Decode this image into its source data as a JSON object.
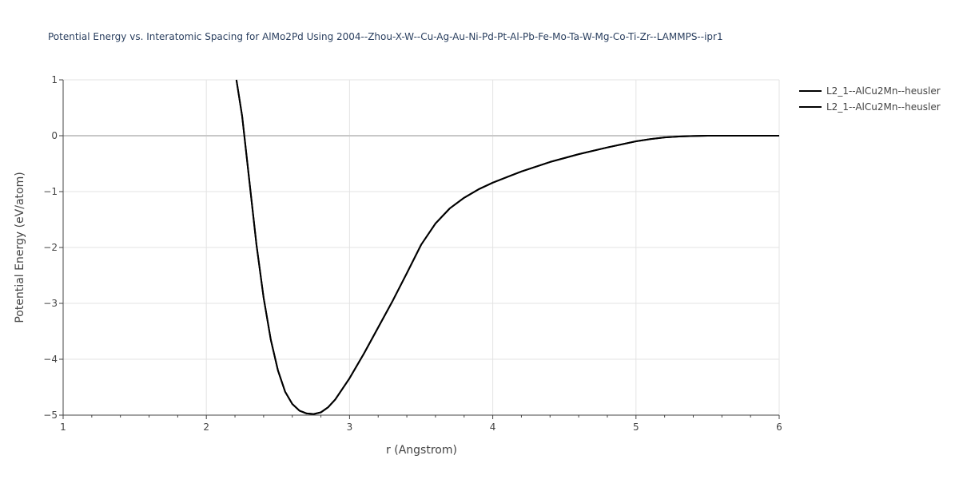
{
  "chart_data": {
    "type": "line",
    "title": "Potential Energy vs. Interatomic Spacing for AlMo2Pd Using 2004--Zhou-X-W--Cu-Ag-Au-Ni-Pd-Pt-Al-Pb-Fe-Mo-Ta-W-Mg-Co-Ti-Zr--LAMMPS--ipr1",
    "xlabel": "r (Angstrom)",
    "ylabel": "Potential Energy (eV/atom)",
    "xlim": [
      1,
      6
    ],
    "ylim": [
      -5,
      1
    ],
    "x_ticks": [
      1,
      2,
      3,
      4,
      5,
      6
    ],
    "x_tick_labels": [
      "1",
      "2",
      "3",
      "4",
      "5",
      "6"
    ],
    "y_ticks": [
      1,
      0,
      -1,
      -2,
      -3,
      -4,
      -5
    ],
    "y_tick_labels": [
      "1",
      "0",
      "−1",
      "−2",
      "−3",
      "−4",
      "−5"
    ],
    "grid": true,
    "legend_position": "top-right",
    "series": [
      {
        "name": "L2_1--AlCu2Mn--heusler",
        "color": "#000000",
        "x": [
          2.21,
          2.25,
          2.3,
          2.35,
          2.4,
          2.45,
          2.5,
          2.55,
          2.6,
          2.65,
          2.7,
          2.75,
          2.8,
          2.85,
          2.9,
          3.0,
          3.1,
          3.2,
          3.3,
          3.4,
          3.5,
          3.6,
          3.7,
          3.8,
          3.9,
          4.0,
          4.2,
          4.4,
          4.6,
          4.8,
          5.0,
          5.1,
          5.2,
          5.3,
          5.4,
          5.5,
          5.7,
          6.0
        ],
        "y": [
          1.0,
          0.35,
          -0.8,
          -1.95,
          -2.9,
          -3.65,
          -4.2,
          -4.58,
          -4.8,
          -4.92,
          -4.97,
          -4.98,
          -4.95,
          -4.86,
          -4.72,
          -4.34,
          -3.9,
          -3.43,
          -2.96,
          -2.46,
          -1.95,
          -1.57,
          -1.3,
          -1.11,
          -0.96,
          -0.84,
          -0.64,
          -0.47,
          -0.33,
          -0.21,
          -0.1,
          -0.06,
          -0.03,
          -0.015,
          -0.005,
          0.0,
          0.0,
          0.0
        ]
      },
      {
        "name": "L2_1--AlCu2Mn--heusler",
        "color": "#000000",
        "x": [
          2.21,
          2.25,
          2.3,
          2.35,
          2.4,
          2.45,
          2.5,
          2.55,
          2.6,
          2.65,
          2.7,
          2.75,
          2.8,
          2.85,
          2.9,
          3.0,
          3.1,
          3.2,
          3.3,
          3.4,
          3.5,
          3.6,
          3.7,
          3.8,
          3.9,
          4.0,
          4.2,
          4.4,
          4.6,
          4.8,
          5.0,
          5.1,
          5.2,
          5.3,
          5.4,
          5.5,
          5.7,
          6.0
        ],
        "y": [
          1.0,
          0.35,
          -0.8,
          -1.95,
          -2.9,
          -3.65,
          -4.2,
          -4.58,
          -4.8,
          -4.92,
          -4.97,
          -4.98,
          -4.95,
          -4.86,
          -4.72,
          -4.34,
          -3.9,
          -3.43,
          -2.96,
          -2.46,
          -1.95,
          -1.57,
          -1.3,
          -1.11,
          -0.96,
          -0.84,
          -0.64,
          -0.47,
          -0.33,
          -0.21,
          -0.1,
          -0.06,
          -0.03,
          -0.015,
          -0.005,
          0.0,
          0.0,
          0.0
        ]
      }
    ]
  }
}
